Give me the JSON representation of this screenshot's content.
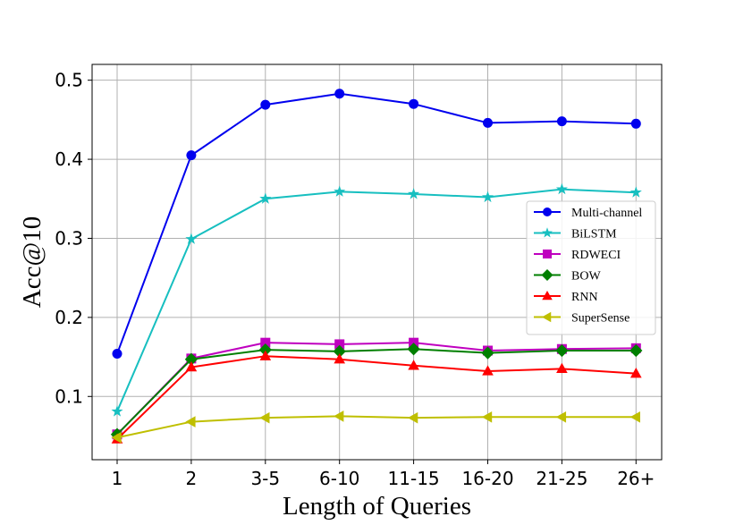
{
  "chart_data": {
    "type": "line",
    "title": "",
    "xlabel": "Length of Queries",
    "ylabel": "Acc@10",
    "x": [
      1,
      2,
      3,
      4,
      5,
      6,
      7,
      8
    ],
    "xticks": [
      {
        "x": 1,
        "label": "1"
      },
      {
        "x": 2,
        "label": "2"
      },
      {
        "x": 3,
        "label": "3-5"
      },
      {
        "x": 4,
        "label": "6-10"
      },
      {
        "x": 5,
        "label": "11-15"
      },
      {
        "x": 6,
        "label": "16-20"
      },
      {
        "x": 7,
        "label": "21-25"
      },
      {
        "x": 8,
        "label": "26+"
      }
    ],
    "yticks": [
      {
        "value": 0.1,
        "label": "0.1"
      },
      {
        "value": 0.2,
        "label": "0.2"
      },
      {
        "value": 0.3,
        "label": "0.3"
      },
      {
        "value": 0.4,
        "label": "0.4"
      },
      {
        "value": 0.5,
        "label": "0.5"
      }
    ],
    "ylim": [
      0.02,
      0.52
    ],
    "grid": true,
    "legend_position": "center-right",
    "series": [
      {
        "name": "Multi-channel",
        "color": "#0000ee",
        "marker": "circle",
        "values": [
          0.154,
          0.405,
          0.469,
          0.483,
          0.47,
          0.446,
          0.448,
          0.445
        ]
      },
      {
        "name": "BiLSTM",
        "color": "#17bfc0",
        "marker": "star",
        "values": [
          0.081,
          0.299,
          0.35,
          0.359,
          0.356,
          0.352,
          0.362,
          0.358
        ]
      },
      {
        "name": "RDWECI",
        "color": "#bf00bf",
        "marker": "square",
        "values": [
          0.052,
          0.148,
          0.168,
          0.166,
          0.168,
          0.158,
          0.16,
          0.161
        ]
      },
      {
        "name": "BOW",
        "color": "#007f00",
        "marker": "diamond",
        "values": [
          0.052,
          0.147,
          0.159,
          0.157,
          0.16,
          0.155,
          0.158,
          0.158
        ]
      },
      {
        "name": "RNN",
        "color": "#ff0000",
        "marker": "triangle-up",
        "values": [
          0.046,
          0.137,
          0.151,
          0.147,
          0.139,
          0.132,
          0.135,
          0.129
        ]
      },
      {
        "name": "SuperSense",
        "color": "#bfbf00",
        "marker": "triangle-left",
        "values": [
          0.048,
          0.068,
          0.073,
          0.075,
          0.073,
          0.074,
          0.074,
          0.074
        ]
      }
    ]
  }
}
